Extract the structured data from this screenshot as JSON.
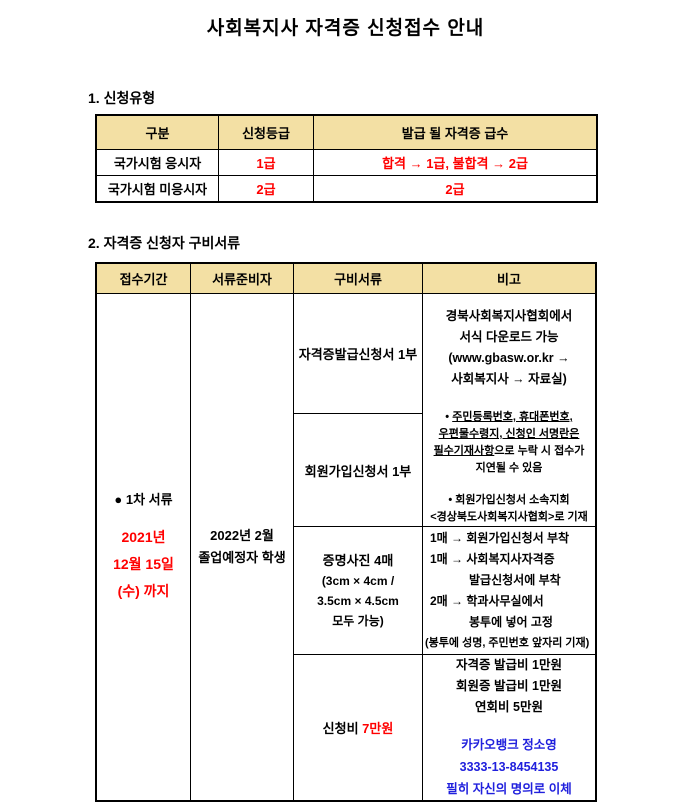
{
  "doc": {
    "title": "사회복지사 자격증 신청접수 안내"
  },
  "colors": {
    "table_header_bg": "#f3e0a4",
    "emphasis_red": "#ff0000",
    "bank_blue": "#2020dd"
  },
  "section1": {
    "heading": "1. 신청유형",
    "table": {
      "col_category": "구분",
      "col_grade": "신청등급",
      "col_issued": "발급 될 자격증 급수",
      "row1": {
        "category": "국가시험 응시자",
        "grade": "1급",
        "issued": "합격 → 1급, 불합격 → 2급"
      },
      "row2": {
        "category": "국가시험 미응시자",
        "grade": "2급",
        "issued": "2급"
      }
    }
  },
  "section2": {
    "heading": "2. 자격증 신청자 구비서류",
    "table": {
      "col_period": "접수기간",
      "col_preparer": "서류준비자",
      "col_documents": "구비서류",
      "col_note": "비고",
      "period": {
        "label": "● 1차 서류",
        "deadline1": "2021년",
        "deadline2": "12월 15일",
        "deadline3": "(수) 까지"
      },
      "preparer": {
        "line1": "2022년 2월",
        "line2": "졸업예정자 학생"
      },
      "documents": {
        "application_form": "자격증발급신청서 1부",
        "membership_form": "회원가입신청서 1부",
        "photo_title": "증명사진 4매",
        "photo_sub1": "(3cm × 4cm /",
        "photo_sub2": "3.5cm × 4.5cm",
        "photo_sub3": "모두 가능)",
        "fee_label": "신청비",
        "fee_amount": "7만원"
      },
      "notes": {
        "download1": "경북사회복지사협회에서",
        "download2": "서식 다운로드 가능",
        "download3": "(www.gbasw.or.kr →",
        "download4": "사회복지사 → 자료실)",
        "required_bullet": "•",
        "required_u1": "주민등록번호, 휴대폰번호,",
        "required_u2": "우편물수령지, 신청인 서명란은",
        "required_u3": "필수기재사항",
        "required_rest": "으로 누락 시 접수가",
        "required_last": "지연될 수 있음",
        "membership_bullet": "•",
        "membership_note1": "회원가입신청서 소속지회",
        "membership_note2": "<경상북도사회복지사협회>로 기재",
        "photo1": "1매 → 회원가입신청서 부착",
        "photo2": "1매 → 사회복지사자격증",
        "photo3": "발급신청서에 부착",
        "photo4": "2매 → 학과사무실에서",
        "photo5": "봉투에 넣어 고정",
        "photo6": "(봉투에 성명, 주민번호 앞자리 기재)",
        "fee1": "자격증 발급비 1만원",
        "fee2": "회원증 발급비 1만원",
        "fee3": "연회비 5만원",
        "bank1": "카카오뱅크 정소영",
        "bank2": "3333-13-8454135",
        "bank3": "필히 자신의 명의로 이체"
      }
    }
  }
}
